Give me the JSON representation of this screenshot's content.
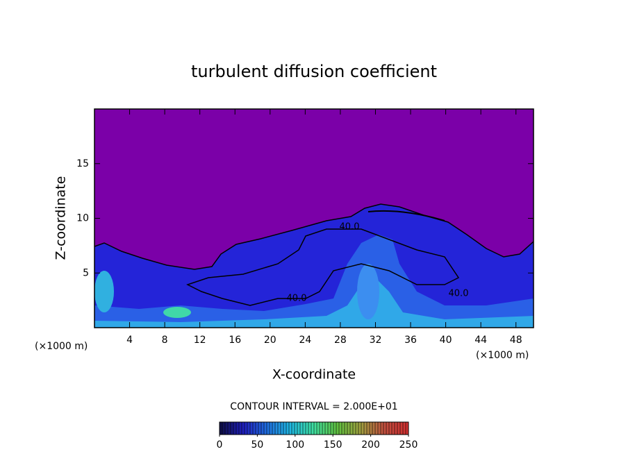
{
  "chart_data": {
    "type": "contour",
    "title": "turbulent diffusion coefficient",
    "x_label": "X-coordinate",
    "y_label": "Z-coordinate",
    "x_unit_labels": [
      "(×1000 m)",
      "(×1000 m)"
    ],
    "xlim": [
      0,
      50
    ],
    "xticks": [
      4,
      8,
      12,
      16,
      20,
      24,
      28,
      32,
      36,
      40,
      44,
      48
    ],
    "ylim": [
      0,
      20
    ],
    "yticks": [
      5,
      10,
      15
    ],
    "contour_labels": [
      "40.0",
      "40.0",
      "40.0"
    ],
    "contour_interval_label": "CONTOUR INTERVAL = 2.000E+01",
    "colorbar": {
      "lim": [
        0,
        250
      ],
      "ticks": [
        0,
        50,
        100,
        150,
        200,
        250
      ],
      "colors": [
        "#10104a",
        "#2020c0",
        "#2070e0",
        "#20b8e0",
        "#40e0a0",
        "#60c040",
        "#a0a040",
        "#c05040",
        "#d03030"
      ]
    }
  }
}
